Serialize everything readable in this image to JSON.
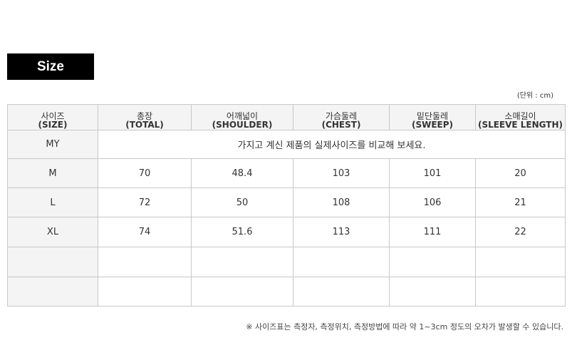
{
  "title": "Size",
  "unit": "(단위 : cm)",
  "columns": [
    {
      "ko": "사이즈",
      "en": "(SIZE)"
    },
    {
      "ko": "총장",
      "en": "(TOTAL)"
    },
    {
      "ko": "어깨넓이",
      "en": "(SHOULDER)"
    },
    {
      "ko": "가슴둘레",
      "en": "(CHEST)"
    },
    {
      "ko": "밑단둘레",
      "en": "(SWEEP)"
    },
    {
      "ko": "소매길이",
      "en": "(SLEEVE LENGTH)"
    }
  ],
  "my_row": {
    "label": "MY",
    "text": "가지고 계신 제품의 실제사이즈를 비교해 보세요."
  },
  "rows": [
    [
      "M",
      "70",
      "48.4",
      "103",
      "101",
      "20"
    ],
    [
      "L",
      "72",
      "50",
      "108",
      "106",
      "21"
    ],
    [
      "XL",
      "74",
      "51.6",
      "113",
      "111",
      "22"
    ]
  ],
  "note": "※ 사이즈표는 측정자, 측정위치, 측정방법에 따라 약 1~3cm 정도의 오차가 발생할 수 있습니다."
}
